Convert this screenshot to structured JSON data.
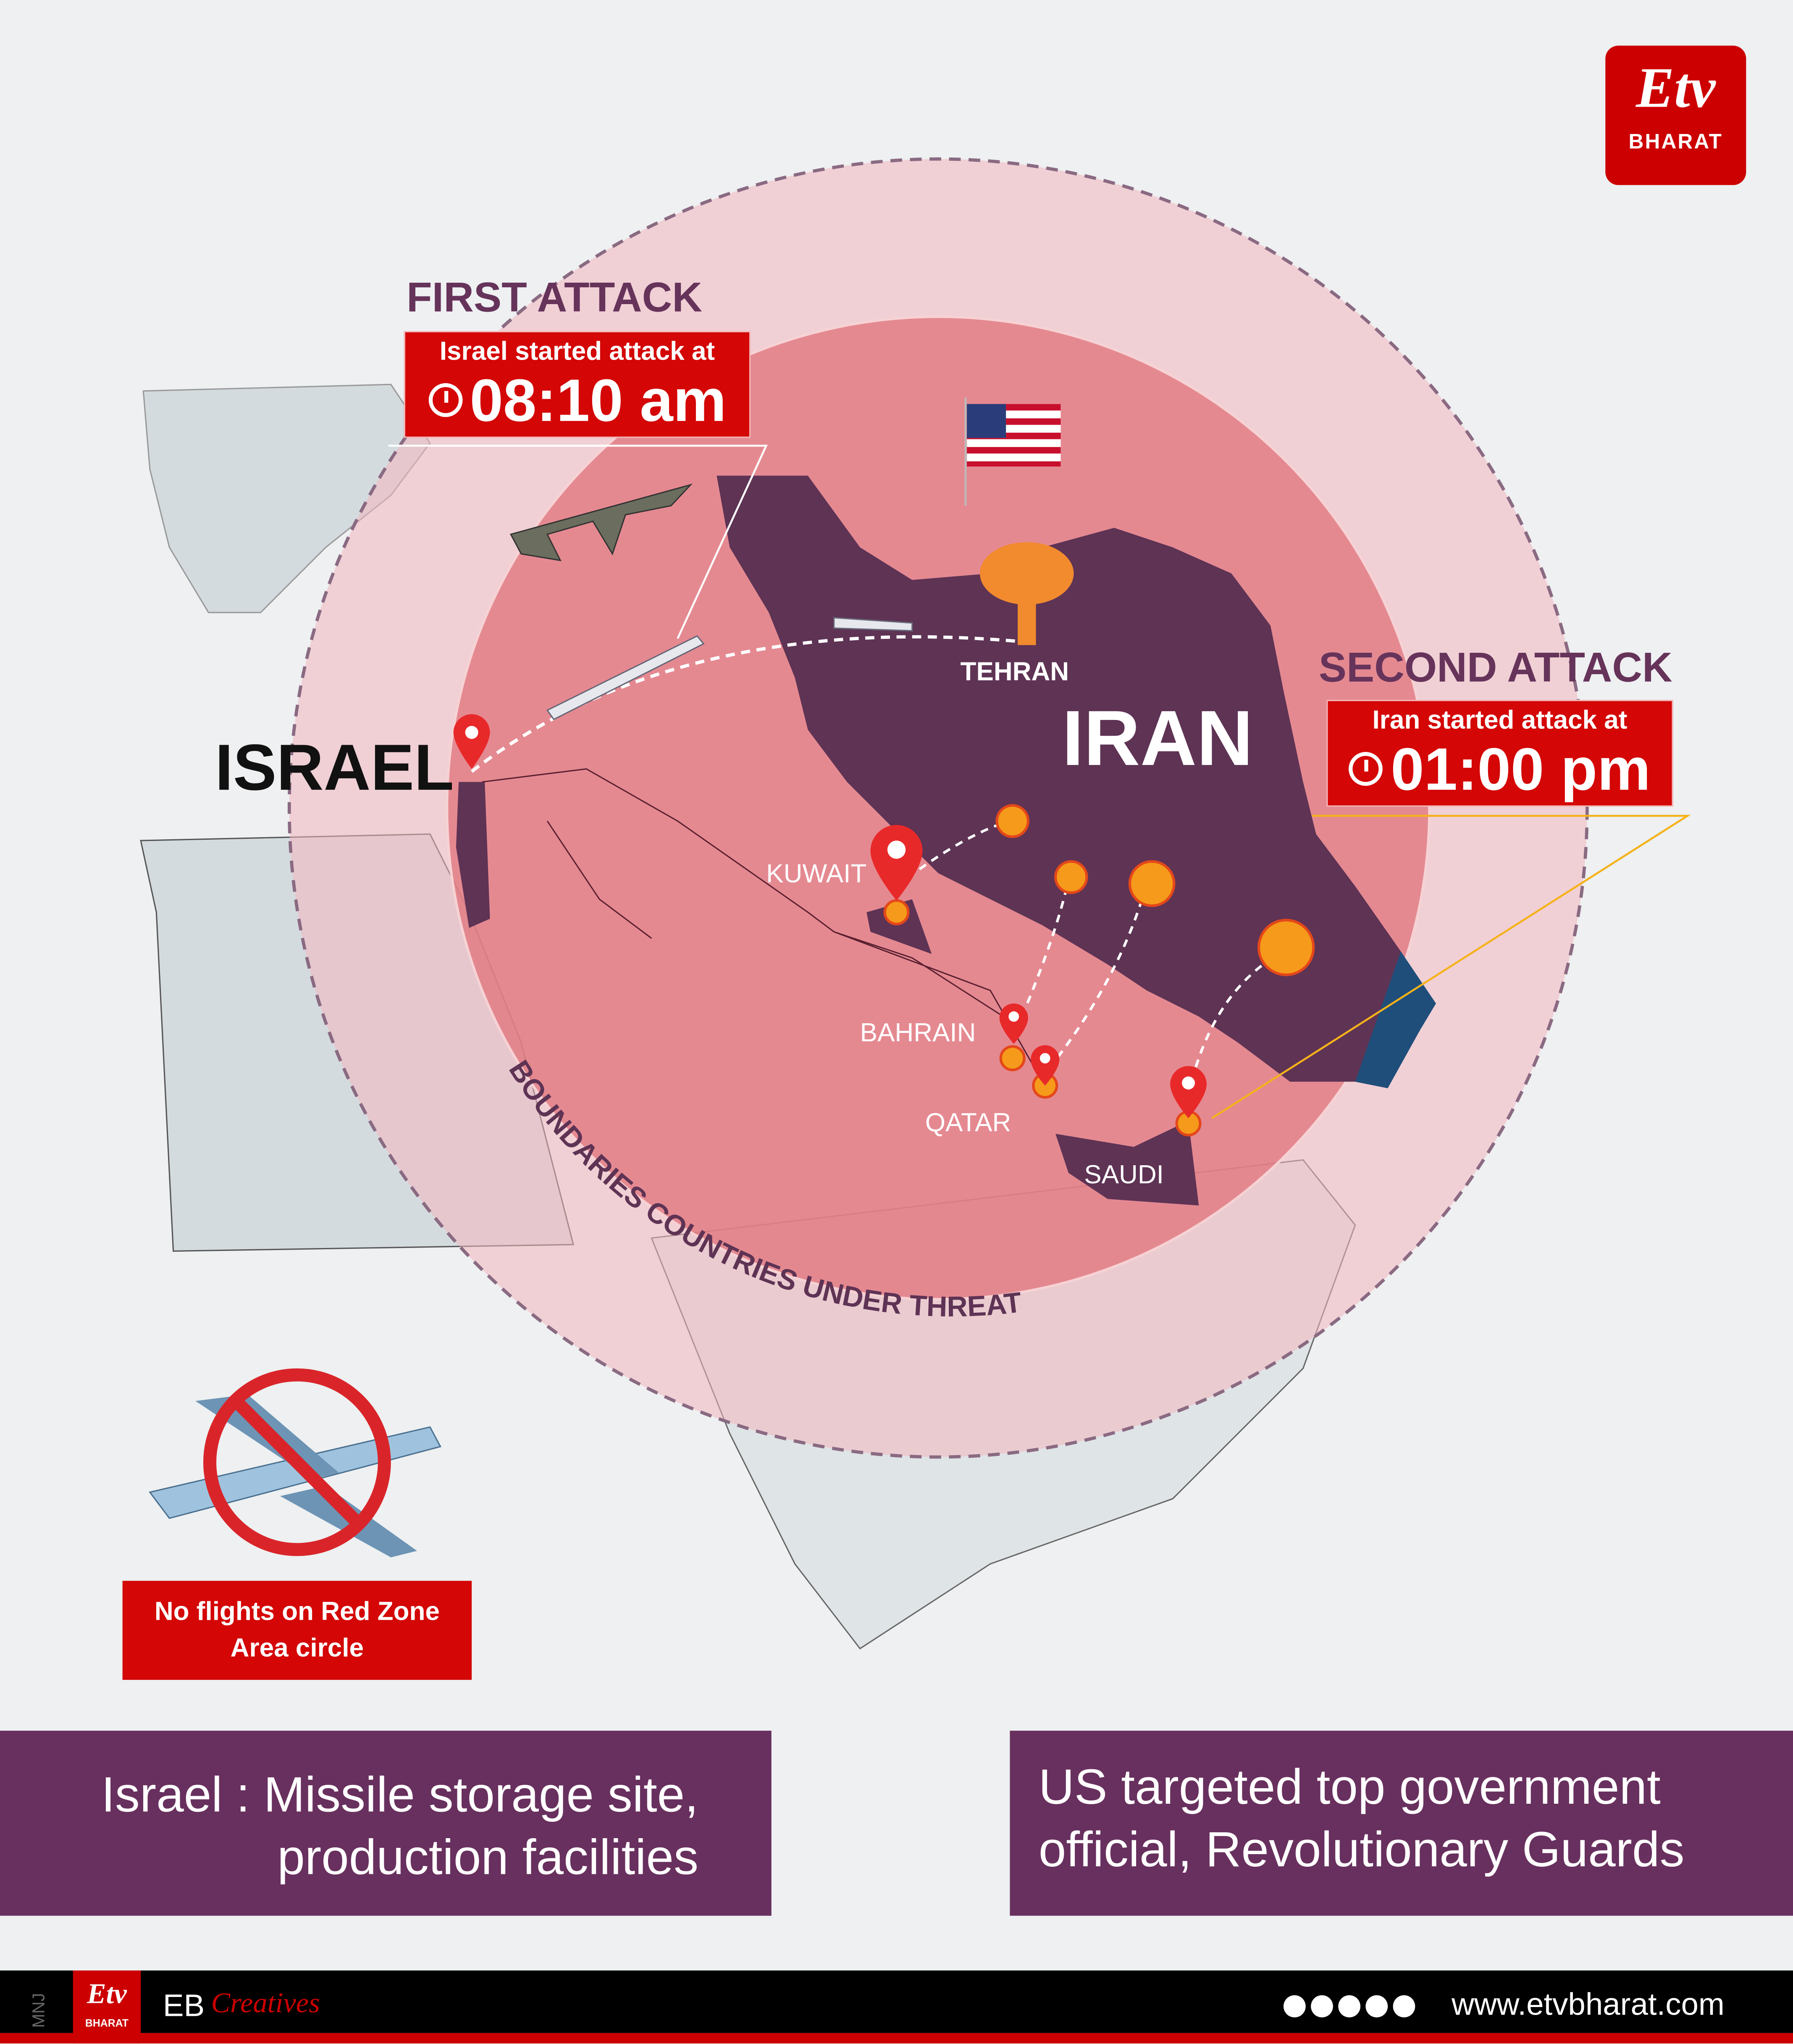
{
  "brand": {
    "logo_text": "BHARAT",
    "accent": "#cc0000",
    "purple": "#68305e"
  },
  "first_attack": {
    "heading": "FIRST ATTACK",
    "subtitle": "Israel started attack at",
    "time": "08:10 am",
    "icon": "clock-icon"
  },
  "second_attack": {
    "heading": "SECOND ATTACK",
    "subtitle": "Iran started attack at",
    "time": "01:00 pm",
    "icon": "clock-icon"
  },
  "map_labels": {
    "israel": "ISRAEL",
    "iran": "IRAN",
    "tehran": "TEHRAN",
    "kuwait": "KUWAIT",
    "bahrain": "BAHRAIN",
    "qatar": "QATAR",
    "saudi": "SAUDI"
  },
  "circle_caption": "BOUNDARIES COUNTRIES UNDER THREAT",
  "no_flights": {
    "line1": "No flights on Red Zone",
    "line2": "Area circle"
  },
  "info_left": {
    "line1": "Israel : Missile storage site,",
    "line2": "production facilities"
  },
  "info_right": {
    "line1": "US targeted top government",
    "line2": "official, Revolutionary Guards"
  },
  "footer": {
    "initials": "MNJ",
    "eb": "EB",
    "creatives": "Creatives",
    "website": "www.etvbharat.com",
    "logo_text": "BHARAT",
    "social_icons": [
      "facebook-icon",
      "x-icon",
      "instagram-icon",
      "youtube-icon",
      "whatsapp-icon"
    ]
  }
}
